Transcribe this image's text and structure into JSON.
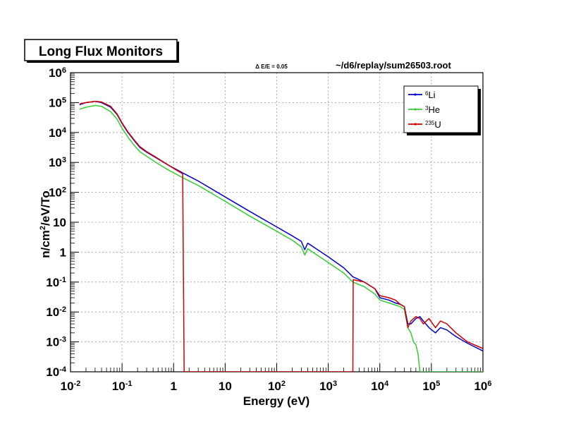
{
  "chart_data": {
    "type": "line",
    "title": "Long Flux Monitors",
    "annotation_left": "Δ E/E = 0.05",
    "annotation_right": "~/d6/replay/sum26503.root",
    "xlabel": "Energy (eV)",
    "ylabel_parts": {
      "base": "n/cm",
      "sup": "2",
      "rest": "/eV/To"
    },
    "xscale": "log",
    "yscale": "log",
    "xlim": [
      0.01,
      1000000
    ],
    "ylim": [
      0.0001,
      1000000
    ],
    "grid": true,
    "legend_position": "top-right",
    "x_ticks": [
      {
        "value": 0.01,
        "base": "10",
        "exp": "-2"
      },
      {
        "value": 0.1,
        "base": "10",
        "exp": "-1"
      },
      {
        "value": 1,
        "base": "1",
        "exp": ""
      },
      {
        "value": 10,
        "base": "10",
        "exp": ""
      },
      {
        "value": 100,
        "base": "10",
        "exp": "2"
      },
      {
        "value": 1000,
        "base": "10",
        "exp": "3"
      },
      {
        "value": 10000,
        "base": "10",
        "exp": "4"
      },
      {
        "value": 100000,
        "base": "10",
        "exp": "5"
      },
      {
        "value": 1000000,
        "base": "10",
        "exp": "6"
      }
    ],
    "y_ticks": [
      {
        "value": 0.0001,
        "base": "10",
        "exp": "-4"
      },
      {
        "value": 0.001,
        "base": "10",
        "exp": "-3"
      },
      {
        "value": 0.01,
        "base": "10",
        "exp": "-2"
      },
      {
        "value": 0.1,
        "base": "10",
        "exp": "-1"
      },
      {
        "value": 1,
        "base": "1",
        "exp": ""
      },
      {
        "value": 10,
        "base": "10",
        "exp": ""
      },
      {
        "value": 100,
        "base": "10",
        "exp": "2"
      },
      {
        "value": 1000,
        "base": "10",
        "exp": "3"
      },
      {
        "value": 10000,
        "base": "10",
        "exp": "4"
      },
      {
        "value": 100000,
        "base": "10",
        "exp": "5"
      },
      {
        "value": 1000000,
        "base": "10",
        "exp": "6"
      }
    ],
    "series": [
      {
        "name_sup": "6",
        "name_base": "Li",
        "color": "#0000cc",
        "points": [
          [
            0.015,
            85000
          ],
          [
            0.02,
            100000
          ],
          [
            0.03,
            110000
          ],
          [
            0.04,
            100000
          ],
          [
            0.06,
            70000
          ],
          [
            0.08,
            40000
          ],
          [
            0.1,
            20000
          ],
          [
            0.13,
            10000
          ],
          [
            0.17,
            5500
          ],
          [
            0.22,
            3200
          ],
          [
            0.3,
            2200
          ],
          [
            0.5,
            1300
          ],
          [
            0.8,
            800
          ],
          [
            1.2,
            550
          ],
          [
            1.6,
            420
          ],
          [
            3,
            240
          ],
          [
            10,
            70
          ],
          [
            30,
            23
          ],
          [
            100,
            7
          ],
          [
            200,
            3.5
          ],
          [
            300,
            2.3
          ],
          [
            350,
            1.2
          ],
          [
            400,
            2.0
          ],
          [
            1000,
            0.7
          ],
          [
            2000,
            0.3
          ],
          [
            3000,
            0.15
          ],
          [
            5000,
            0.1
          ],
          [
            8000,
            0.06
          ],
          [
            10000,
            0.03
          ],
          [
            15000,
            0.025
          ],
          [
            20000,
            0.02
          ],
          [
            25000,
            0.018
          ],
          [
            30000,
            0.015
          ],
          [
            35000,
            0.004
          ],
          [
            40000,
            0.004
          ],
          [
            50000,
            0.006
          ],
          [
            60000,
            0.007
          ],
          [
            70000,
            0.005
          ],
          [
            90000,
            0.003
          ],
          [
            120000,
            0.002
          ],
          [
            150000,
            0.003
          ],
          [
            200000,
            0.0025
          ],
          [
            300000,
            0.0015
          ],
          [
            500000,
            0.0009
          ],
          [
            1000000,
            0.0005
          ]
        ]
      },
      {
        "name_sup": "3",
        "name_base": "He",
        "color": "#33cc33",
        "points": [
          [
            0.015,
            60000
          ],
          [
            0.02,
            70000
          ],
          [
            0.03,
            80000
          ],
          [
            0.04,
            75000
          ],
          [
            0.06,
            50000
          ],
          [
            0.08,
            28000
          ],
          [
            0.1,
            14000
          ],
          [
            0.13,
            7000
          ],
          [
            0.17,
            3800
          ],
          [
            0.22,
            2300
          ],
          [
            0.3,
            1600
          ],
          [
            0.5,
            900
          ],
          [
            0.8,
            550
          ],
          [
            1.2,
            380
          ],
          [
            1.6,
            290
          ],
          [
            3,
            170
          ],
          [
            10,
            50
          ],
          [
            30,
            16
          ],
          [
            100,
            5
          ],
          [
            200,
            2.5
          ],
          [
            300,
            1.5
          ],
          [
            350,
            0.8
          ],
          [
            400,
            1.3
          ],
          [
            1000,
            0.45
          ],
          [
            2000,
            0.2
          ],
          [
            3000,
            0.1
          ],
          [
            5000,
            0.07
          ],
          [
            8000,
            0.04
          ],
          [
            10000,
            0.025
          ],
          [
            15000,
            0.02
          ],
          [
            20000,
            0.017
          ],
          [
            25000,
            0.015
          ],
          [
            30000,
            0.012
          ],
          [
            35000,
            0.003
          ],
          [
            40000,
            0.002
          ],
          [
            45000,
            0.001
          ],
          [
            50000,
            0.0008
          ],
          [
            55000,
            0.0004
          ],
          [
            60000,
            0.0001
          ],
          [
            1000000,
            0.0001
          ]
        ]
      },
      {
        "name_sup": "235",
        "name_base": "U",
        "color": "#cc0000",
        "points": [
          [
            0.015,
            90000
          ],
          [
            0.02,
            100000
          ],
          [
            0.03,
            110000
          ],
          [
            0.04,
            105000
          ],
          [
            0.06,
            75000
          ],
          [
            0.08,
            42000
          ],
          [
            0.1,
            21000
          ],
          [
            0.13,
            10500
          ],
          [
            0.17,
            5800
          ],
          [
            0.22,
            3400
          ],
          [
            0.3,
            2300
          ],
          [
            0.5,
            1350
          ],
          [
            0.8,
            800
          ],
          [
            1.2,
            520
          ],
          [
            1.5,
            420
          ],
          [
            1.6,
            0.0001
          ],
          [
            3000,
            0.0001
          ],
          [
            3050,
            0.12
          ],
          [
            5000,
            0.1
          ],
          [
            8000,
            0.06
          ],
          [
            10000,
            0.035
          ],
          [
            15000,
            0.03
          ],
          [
            20000,
            0.025
          ],
          [
            25000,
            0.018
          ],
          [
            30000,
            0.015
          ],
          [
            35000,
            0.003
          ],
          [
            40000,
            0.005
          ],
          [
            50000,
            0.007
          ],
          [
            60000,
            0.006
          ],
          [
            70000,
            0.004
          ],
          [
            90000,
            0.006
          ],
          [
            120000,
            0.003
          ],
          [
            150000,
            0.005
          ],
          [
            200000,
            0.004
          ],
          [
            300000,
            0.002
          ],
          [
            500000,
            0.001
          ],
          [
            1000000,
            0.0006
          ]
        ]
      }
    ]
  }
}
